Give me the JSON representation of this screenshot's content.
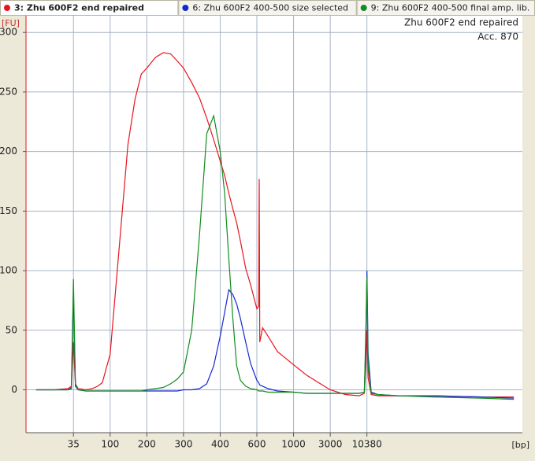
{
  "chart_data": {
    "type": "line",
    "ylabel": "[FU]",
    "xlabel": "[bp]",
    "annotations": [
      "Zhu 600F2 end repaired",
      "Acc. 870"
    ],
    "x": [
      12,
      20,
      30,
      33,
      35,
      37,
      40,
      50,
      60,
      70,
      80,
      100,
      120,
      140,
      160,
      180,
      200,
      220,
      240,
      260,
      280,
      300,
      320,
      340,
      360,
      380,
      400,
      420,
      440,
      460,
      480,
      500,
      530,
      560,
      600,
      615,
      620,
      625,
      650,
      700,
      800,
      1000,
      1500,
      2000,
      3000,
      5000,
      8000,
      9500,
      10000,
      10380,
      10800,
      12000,
      15000,
      30000,
      100000,
      500000,
      1500000
    ],
    "series": [
      {
        "name": "3: Zhu 600F2 end repaired",
        "color": "#e8141e",
        "values": [
          0,
          0,
          1,
          3,
          40,
          5,
          1,
          0,
          1,
          3,
          6,
          30,
          125,
          206,
          244,
          265,
          270,
          279,
          283,
          282,
          276,
          270,
          258,
          245,
          228,
          210,
          192,
          180,
          165,
          152,
          140,
          125,
          102,
          88,
          68,
          70,
          177,
          40,
          52,
          45,
          32,
          21,
          12,
          7,
          0,
          -4,
          -5,
          -3,
          20,
          50,
          10,
          -4,
          -5,
          -5,
          -5,
          -6,
          -6
        ]
      },
      {
        "name": "6: Zhu 600F2 400-500 size selected",
        "color": "#1428d2",
        "values": [
          0,
          0,
          0,
          1,
          80,
          3,
          0,
          -1,
          -1,
          -1,
          -1,
          -1,
          -1,
          -1,
          -1,
          -1,
          -1,
          -1,
          -1,
          -1,
          -1,
          0,
          0,
          1,
          5,
          20,
          45,
          65,
          84,
          80,
          72,
          60,
          40,
          22,
          8,
          6,
          5,
          4,
          3,
          1,
          -1,
          -2,
          -3,
          -3,
          -3,
          -3,
          -3,
          -2,
          40,
          100,
          30,
          -2,
          -4,
          -5,
          -5,
          -6,
          -7
        ]
      },
      {
        "name": "9: Zhu 600F2 400-500 final amp. lib.",
        "color": "#128c1e",
        "values": [
          0,
          0,
          0,
          2,
          93,
          5,
          0,
          -1,
          -1,
          -1,
          -1,
          -1,
          -1,
          -1,
          -1,
          -1,
          0,
          1,
          2,
          5,
          9,
          15,
          50,
          130,
          215,
          230,
          200,
          165,
          110,
          60,
          20,
          8,
          3,
          1,
          0,
          -1,
          -1,
          -1,
          -1,
          -2,
          -2,
          -2,
          -3,
          -3,
          -3,
          -3,
          -3,
          -2,
          50,
          95,
          20,
          -3,
          -4,
          -5,
          -6,
          -7,
          -8
        ]
      }
    ],
    "xlim": [
      9,
      2000000
    ],
    "xticks": [
      35,
      100,
      200,
      300,
      400,
      600,
      1000,
      3000,
      10380
    ],
    "ylim": [
      -36,
      314
    ],
    "yticks": [
      0,
      50,
      100,
      150,
      200,
      250,
      300
    ],
    "grid": true
  }
}
